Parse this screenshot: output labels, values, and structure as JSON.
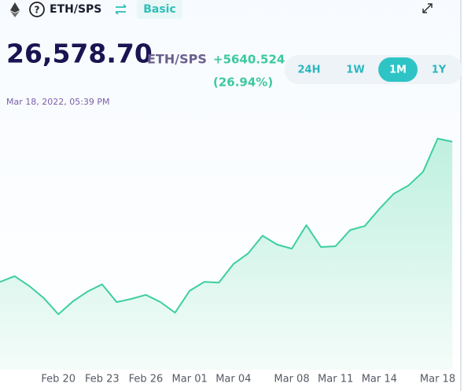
{
  "header": {
    "pair": "ETH/SPS",
    "mode": "Basic"
  },
  "price": {
    "value": "26,578.70",
    "unit": "ETH/SPS",
    "change": "+5640.524",
    "change_pct": "(26.94%)",
    "timestamp": "Mar 18, 2022, 05:39 PM"
  },
  "ranges": {
    "options": [
      "24H",
      "1W",
      "1M",
      "1Y"
    ],
    "active": "1M"
  },
  "chart_data": {
    "type": "area",
    "categories": [
      null,
      null,
      null,
      null,
      "Feb 20",
      null,
      null,
      "Feb 23",
      null,
      null,
      "Feb 26",
      null,
      null,
      "Mar 01",
      null,
      null,
      "Mar 04",
      null,
      null,
      null,
      "Mar 08",
      null,
      null,
      "Mar 11",
      null,
      null,
      "Mar 14",
      null,
      null,
      null,
      "Mar 18",
      null
    ],
    "values": [
      20938,
      21166,
      20775,
      20286,
      19634,
      20156,
      20547,
      20840,
      20123,
      20253,
      20416,
      20123,
      19699,
      20579,
      20938,
      20905,
      21655,
      22079,
      22796,
      22438,
      22275,
      23220,
      22340,
      22372,
      23024,
      23187,
      23872,
      24491,
      24817,
      25372,
      26708,
      26578.7
    ],
    "color": "#3ccf9f",
    "ylim": [
      17400,
      27850
    ]
  }
}
